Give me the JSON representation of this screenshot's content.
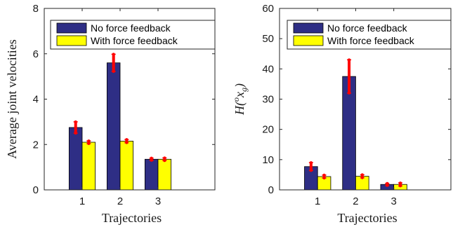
{
  "colors": {
    "no_force_feedback": "#2e2e85",
    "with_force_feedback": "#ffff00",
    "error_bar": "#ff0000",
    "axis": "#262626"
  },
  "chart_data": [
    {
      "type": "bar",
      "categories": [
        "1",
        "2",
        "3"
      ],
      "xlabel": "Trajectories",
      "ylabel": "Average joint velocities",
      "ylim": [
        0,
        8
      ],
      "yticks": [
        "0",
        "2",
        "4",
        "6",
        "8"
      ],
      "grid": false,
      "legend_position": "top-right",
      "series": [
        {
          "name": "No force feedback",
          "values": [
            2.75,
            5.6,
            1.35
          ],
          "errors": [
            0.25,
            0.38,
            0.05
          ]
        },
        {
          "name": "With force feedback",
          "values": [
            2.1,
            2.15,
            1.35
          ],
          "errors": [
            0.06,
            0.07,
            0.06
          ]
        }
      ]
    },
    {
      "type": "bar",
      "categories": [
        "1",
        "2",
        "3"
      ],
      "xlabel": "Trajectories",
      "ylabel": "H(ox_g)",
      "ylim": [
        0,
        60
      ],
      "yticks": [
        "0",
        "10",
        "20",
        "30",
        "40",
        "50",
        "60"
      ],
      "grid": false,
      "legend_position": "top-right",
      "series": [
        {
          "name": "No force feedback",
          "values": [
            7.7,
            37.5,
            1.8
          ],
          "errors": [
            1.3,
            5.5,
            0.35
          ]
        },
        {
          "name": "With force feedback",
          "values": [
            4.4,
            4.5,
            1.8
          ],
          "errors": [
            0.5,
            0.5,
            0.5
          ]
        }
      ]
    }
  ]
}
